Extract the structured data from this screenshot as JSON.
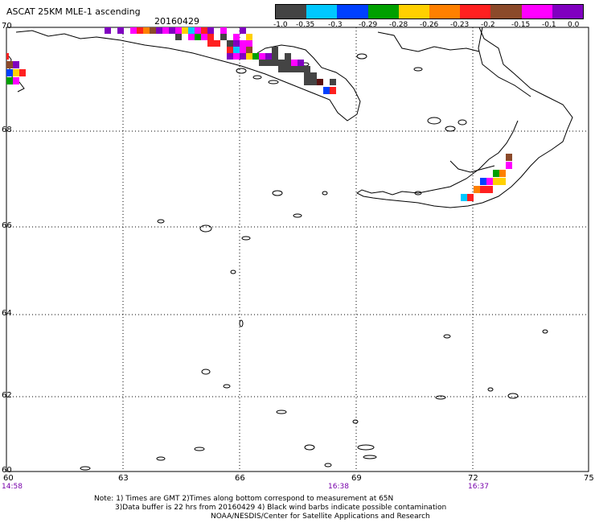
{
  "header": {
    "title": "ASCAT 25KM MLE-1 ascending",
    "date": "20160429"
  },
  "colorbar": {
    "colors": [
      "#444444",
      "#00c8ff",
      "#0040ff",
      "#00a000",
      "#ffd000",
      "#ff8000",
      "#ff2020",
      "#8b4a2a",
      "#ff00ff",
      "#8000c0"
    ],
    "labels": [
      "-1.0",
      "-0.35",
      "-0.3",
      "-0.29",
      "-0.28",
      "-0.26",
      "-0.23",
      "-0.2",
      "-0.15",
      "-0.1",
      "0.0"
    ]
  },
  "map": {
    "lat_ticks": [
      "70",
      "68",
      "66",
      "64",
      "62",
      "60"
    ],
    "lon_ticks": [
      "60",
      "63",
      "66",
      "69",
      "72",
      "75"
    ],
    "lat_values": [
      70,
      68,
      66,
      64,
      62,
      60
    ],
    "lon_values": [
      60,
      63,
      66,
      69,
      72,
      75
    ]
  },
  "times": {
    "t1": "14:58",
    "t2": "16:38",
    "t3": "16:37"
  },
  "notes": {
    "line1": "Note: 1) Times are GMT 2)Times along bottom correspond to measurement at 65N",
    "line2": "3)Data buffer is 22 hrs from 20160429 4) Black wind barbs indicate possible contamination",
    "line3": "NOAA/NESDIS/Center for Satellite Applications and Research"
  }
}
